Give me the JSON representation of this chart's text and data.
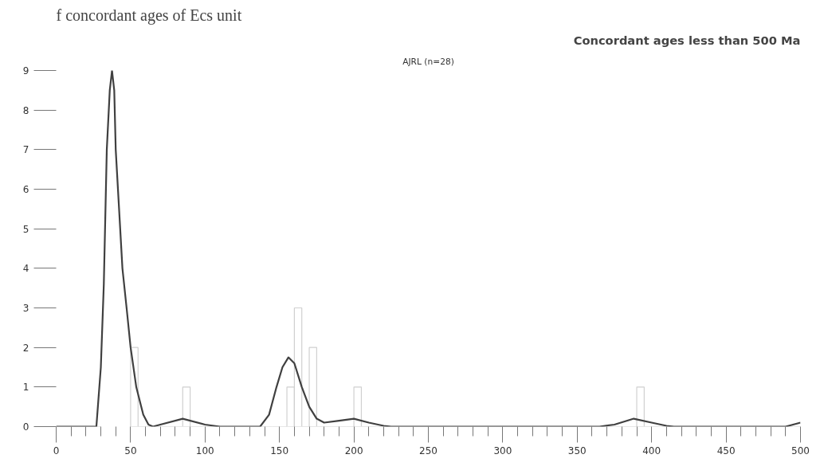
{
  "chart_data": {
    "type": "histogram",
    "title": "Concordant ages less than 500 Ma",
    "subtitle": "AJRL (n=28)",
    "annotations": [
      "f concordant ages of Ecs unit"
    ],
    "bins": [
      0,
      5,
      10,
      15,
      20,
      25,
      30,
      35,
      40,
      45,
      50,
      55,
      60,
      65,
      70,
      75,
      80,
      85,
      90,
      95,
      100,
      105,
      110,
      115,
      120,
      125,
      130,
      135,
      140,
      145,
      150,
      155,
      160,
      165,
      170,
      175,
      180,
      185,
      190,
      195,
      200,
      205,
      210,
      215,
      220,
      225,
      230,
      235,
      240,
      245,
      250,
      255,
      260,
      265,
      270,
      275,
      280,
      285,
      290,
      295,
      300,
      305,
      310,
      315,
      320,
      325,
      330,
      335,
      340,
      345,
      350,
      355,
      360,
      365,
      370,
      375,
      380,
      385,
      390,
      395,
      400,
      405,
      410,
      415,
      420,
      425,
      430,
      435,
      440,
      445,
      450,
      455,
      460,
      465,
      470,
      475,
      480,
      485,
      490,
      495,
      500
    ],
    "values": [
      0,
      0,
      0,
      0,
      0,
      0,
      null,
      null,
      null,
      null,
      2,
      0,
      0,
      0,
      0,
      0,
      0,
      1,
      0,
      0,
      0,
      0,
      0,
      0,
      0,
      0,
      0,
      0,
      0,
      0,
      0,
      1,
      3,
      0,
      2,
      0,
      0,
      0,
      0,
      0,
      1,
      0,
      0,
      0,
      0,
      0,
      0,
      0,
      0,
      0,
      0,
      0,
      0,
      0,
      0,
      0,
      0,
      0,
      0,
      0,
      0,
      0,
      0,
      0,
      0,
      0,
      0,
      0,
      0,
      0,
      0,
      0,
      0,
      0,
      0,
      0,
      0,
      0,
      1,
      0,
      0,
      0,
      0,
      0,
      0,
      0,
      0,
      0,
      0,
      0,
      0,
      0,
      0,
      0,
      0,
      0,
      0,
      0,
      0,
      0
    ],
    "color": "#d0d0d0",
    "series": [
      {
        "type": "line",
        "color": "#404040",
        "x": [
          0,
          27,
          30,
          32,
          34,
          36,
          37.5,
          39,
          40,
          44.5,
          47.3,
          50,
          53.8,
          58.5,
          62,
          65,
          70,
          85,
          100,
          110,
          137,
          143,
          148,
          152,
          156,
          160,
          165,
          170,
          175,
          180,
          190,
          200,
          210,
          220,
          225,
          365,
          375,
          388,
          400,
          410,
          415,
          490,
          500
        ],
        "values": [
          0,
          0,
          1.5,
          3.6,
          7,
          8.5,
          9,
          8.5,
          7,
          4,
          3,
          2,
          1,
          0.3,
          0.05,
          0,
          0.05,
          0.2,
          0.05,
          0,
          0,
          0.3,
          1.0,
          1.5,
          1.75,
          1.6,
          1.0,
          0.5,
          0.2,
          0.1,
          0.15,
          0.2,
          0.1,
          0.02,
          0,
          0,
          0.05,
          0.2,
          0.1,
          0.02,
          0,
          0,
          0.1
        ]
      }
    ],
    "xlim": [
      0,
      500
    ],
    "ylim": [
      0,
      9
    ],
    "xticks": [
      0,
      {
        "value": 10,
        "label": null
      },
      {
        "value": 20,
        "label": null
      },
      {
        "value": 30,
        "label": null
      },
      {
        "value": 40,
        "label": null
      },
      50,
      {
        "value": 60,
        "label": null
      },
      {
        "value": 70,
        "label": null
      },
      {
        "value": 80,
        "label": null
      },
      {
        "value": 90,
        "label": null
      },
      100,
      {
        "value": 110,
        "label": null
      },
      {
        "value": 120,
        "label": null
      },
      {
        "value": 130,
        "label": null
      },
      {
        "value": 140,
        "label": null
      },
      150,
      {
        "value": 160,
        "label": null
      },
      {
        "value": 170,
        "label": null
      },
      {
        "value": 180,
        "label": null
      },
      {
        "value": 190,
        "label": null
      },
      200,
      {
        "value": 210,
        "label": null
      },
      {
        "value": 220,
        "label": null
      },
      {
        "value": 230,
        "label": null
      },
      {
        "value": 240,
        "label": null
      },
      250,
      {
        "value": 260,
        "label": null
      },
      {
        "value": 270,
        "label": null
      },
      {
        "value": 280,
        "label": null
      },
      {
        "value": 290,
        "label": null
      },
      300,
      {
        "value": 310,
        "label": null
      },
      {
        "value": 320,
        "label": null
      },
      {
        "value": 330,
        "label": null
      },
      {
        "value": 340,
        "label": null
      },
      350,
      {
        "value": 360,
        "label": null
      },
      {
        "value": 370,
        "label": null
      },
      {
        "value": 380,
        "label": null
      },
      {
        "value": 390,
        "label": null
      },
      400,
      {
        "value": 410,
        "label": null
      },
      {
        "value": 420,
        "label": null
      },
      {
        "value": 430,
        "label": null
      },
      {
        "value": 440,
        "label": null
      },
      450,
      {
        "value": 460,
        "label": null
      },
      {
        "value": 470,
        "label": null
      },
      {
        "value": 480,
        "label": null
      },
      {
        "value": 490,
        "label": null
      },
      500
    ],
    "yticks": [
      0,
      1,
      2,
      3,
      4,
      5,
      6,
      7,
      8,
      9
    ],
    "grid": false
  }
}
